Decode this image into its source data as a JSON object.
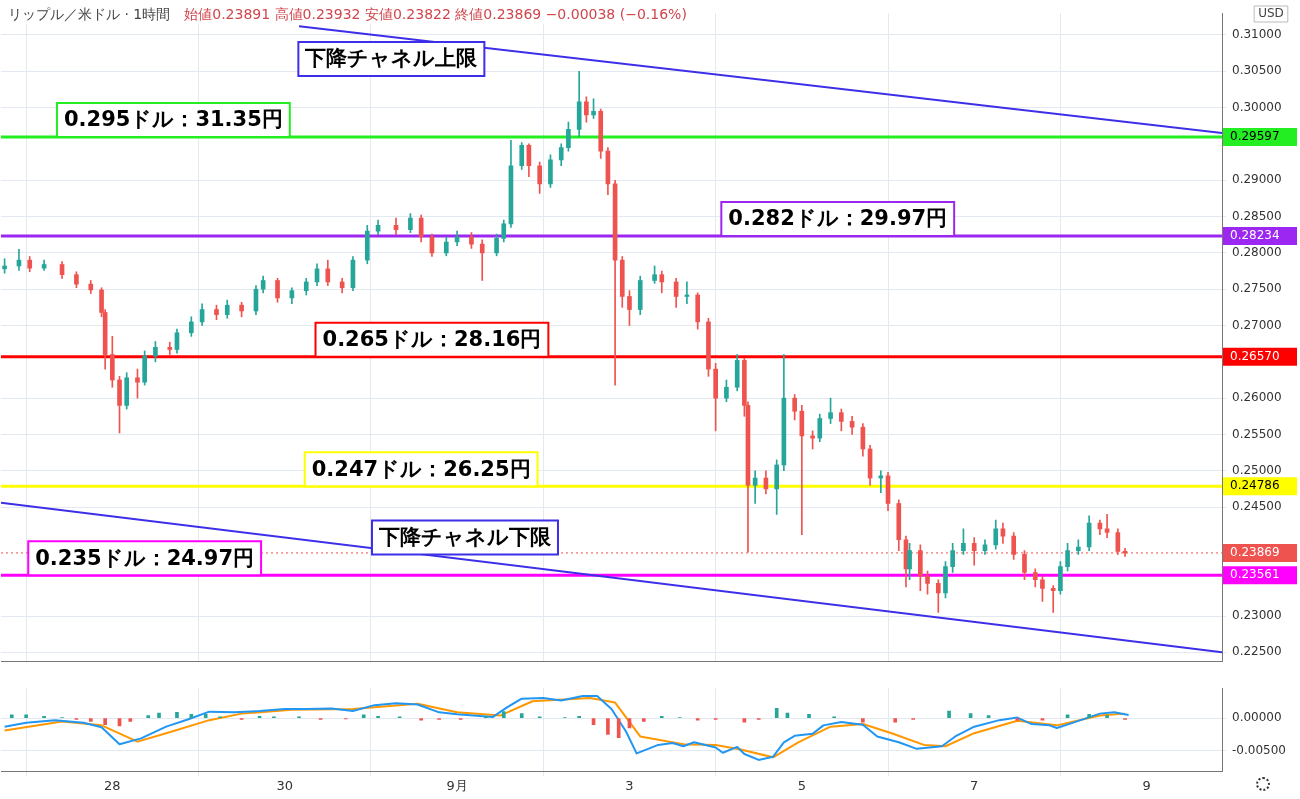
{
  "chart_data": [
    {
      "type": "candlestick",
      "title": "リップル／米ドル · 1時間",
      "subtitle": "始値0.23891 高値0.23932 安値0.23822 終値0.23869 −0.00038 (−0.16%)",
      "x": [
        "--08-26T18:00",
        "--08-26T22:00",
        "--08-27T01:00",
        "--08-27T05:00",
        "--08-27T10:00",
        "--08-27T14:00",
        "--08-27T18:00",
        "--08-27T21:00",
        "--08-27T22:00",
        "--08-28T00:00",
        "--08-28T02:00",
        "--08-28T04:00",
        "--08-28T07:00",
        "--08-28T09:00",
        "--08-28T12:00",
        "--08-28T16:00",
        "--08-28T18:00",
        "--08-28T22:00",
        "--08-29T01:00",
        "--08-29T05:00",
        "--08-29T08:00",
        "--08-29T12:00",
        "--08-29T16:00",
        "--08-29T18:00",
        "--08-29T22:00",
        "--08-30T02:00",
        "--08-30T06:00",
        "--08-30T09:00",
        "--08-30T12:00",
        "--08-30T16:00",
        "--08-30T19:00",
        "--08-30T23:00",
        "--08-31T02:00",
        "--08-31T07:00",
        "--08-31T11:00",
        "--08-31T14:00",
        "--08-31T17:00",
        "--08-31T21:00",
        "--09-01T00:00",
        "--09-01T04:00",
        "--09-01T07:00",
        "--09-01T11:00",
        "--09-01T13:00",
        "--09-01T15:00",
        "--09-01T18:00",
        "--09-01T20:00",
        "--09-01T23:00",
        "--09-02T02:00",
        "--09-02T05:00",
        "--09-02T07:00",
        "--09-02T10:00",
        "--09-02T12:00",
        "--09-02T14:00",
        "--09-02T16:00",
        "--09-02T18:00",
        "--09-02T20:00",
        "--09-02T22:00",
        "--09-03T00:00",
        "--09-03T03:00",
        "--09-03T07:00",
        "--09-03T09:00",
        "--09-03T13:00",
        "--09-03T16:00",
        "--09-03T19:00",
        "--09-03T22:00",
        "--09-04T00:00",
        "--09-04T03:00",
        "--09-04T06:00",
        "--09-04T08:00",
        "--09-04T09:00",
        "--09-04T11:00",
        "--09-04T14:00",
        "--09-04T17:00",
        "--09-04T19:00",
        "--09-04T22:00",
        "--09-05T00:00",
        "--09-05T03:00",
        "--09-05T05:00",
        "--09-05T08:00",
        "--09-05T11:00",
        "--09-05T14:00",
        "--09-05T17:00",
        "--09-05T19:00",
        "--09-05T22:00",
        "--09-06T00:00",
        "--09-06T03:00",
        "--09-06T05:00",
        "--09-06T06:00",
        "--09-06T09:00",
        "--09-06T11:00",
        "--09-06T14:00",
        "--09-06T16:00",
        "--09-06T18:00",
        "--09-06T21:00",
        "--09-07T00:00",
        "--09-07T03:00",
        "--09-07T06:00",
        "--09-07T08:00",
        "--09-07T11:00",
        "--09-07T14:00",
        "--09-07T17:00",
        "--09-07T19:00",
        "--09-07T22:00",
        "--09-08T00:00",
        "--09-08T02:00",
        "--09-08T05:00",
        "--09-08T08:00",
        "--09-08T11:00",
        "--09-08T13:00",
        "--09-08T16:00",
        "--09-08T18:00"
      ],
      "ohlc": [
        [
          0.2778,
          0.2792,
          0.2772,
          0.2782
        ],
        [
          0.2782,
          0.2805,
          0.2776,
          0.279
        ],
        [
          0.279,
          0.2795,
          0.2774,
          0.2779
        ],
        [
          0.2779,
          0.279,
          0.2776,
          0.2784
        ],
        [
          0.2784,
          0.2788,
          0.2765,
          0.277
        ],
        [
          0.277,
          0.2774,
          0.2752,
          0.2757
        ],
        [
          0.2757,
          0.2762,
          0.2744,
          0.2749
        ],
        [
          0.2749,
          0.2752,
          0.2712,
          0.2718
        ],
        [
          0.2718,
          0.2722,
          0.264,
          0.266
        ],
        [
          0.266,
          0.2685,
          0.2615,
          0.2625
        ],
        [
          0.2625,
          0.263,
          0.2552,
          0.259
        ],
        [
          0.259,
          0.2635,
          0.2585,
          0.2628
        ],
        [
          0.2628,
          0.264,
          0.26,
          0.2622
        ],
        [
          0.2622,
          0.2665,
          0.2618,
          0.2658
        ],
        [
          0.2658,
          0.2678,
          0.265,
          0.267
        ],
        [
          0.267,
          0.2677,
          0.266,
          0.2667
        ],
        [
          0.2667,
          0.2695,
          0.2662,
          0.269
        ],
        [
          0.269,
          0.2712,
          0.2685,
          0.2705
        ],
        [
          0.2705,
          0.273,
          0.27,
          0.2722
        ],
        [
          0.2722,
          0.2728,
          0.2708,
          0.2715
        ],
        [
          0.2715,
          0.2735,
          0.271,
          0.2728
        ],
        [
          0.2728,
          0.2732,
          0.2712,
          0.272
        ],
        [
          0.272,
          0.2755,
          0.2715,
          0.275
        ],
        [
          0.275,
          0.2768,
          0.2745,
          0.2762
        ],
        [
          0.2762,
          0.2765,
          0.2732,
          0.2738
        ],
        [
          0.2738,
          0.2752,
          0.273,
          0.2748
        ],
        [
          0.2748,
          0.2765,
          0.2742,
          0.276
        ],
        [
          0.276,
          0.2785,
          0.2755,
          0.2778
        ],
        [
          0.2778,
          0.279,
          0.2755,
          0.276
        ],
        [
          0.276,
          0.2765,
          0.2745,
          0.2752
        ],
        [
          0.2752,
          0.2795,
          0.2748,
          0.279
        ],
        [
          0.279,
          0.2838,
          0.2785,
          0.283
        ],
        [
          0.283,
          0.2845,
          0.2825,
          0.2838
        ],
        [
          0.2838,
          0.2848,
          0.2825,
          0.2832
        ],
        [
          0.2832,
          0.2854,
          0.2828,
          0.2848
        ],
        [
          0.2848,
          0.2852,
          0.2815,
          0.2822
        ],
        [
          0.2822,
          0.2826,
          0.2795,
          0.28
        ],
        [
          0.28,
          0.2822,
          0.2796,
          0.2815
        ],
        [
          0.2815,
          0.283,
          0.281,
          0.2822
        ],
        [
          0.2822,
          0.2828,
          0.2806,
          0.2812
        ],
        [
          0.2812,
          0.2818,
          0.2762,
          0.28
        ],
        [
          0.28,
          0.2826,
          0.2796,
          0.282
        ],
        [
          0.282,
          0.2845,
          0.2815,
          0.284
        ],
        [
          0.284,
          0.2955,
          0.2835,
          0.292
        ],
        [
          0.292,
          0.2952,
          0.2915,
          0.2948
        ],
        [
          0.2948,
          0.295,
          0.2905,
          0.292
        ],
        [
          0.292,
          0.2925,
          0.2882,
          0.2895
        ],
        [
          0.2895,
          0.2935,
          0.289,
          0.2928
        ],
        [
          0.2928,
          0.295,
          0.292,
          0.2945
        ],
        [
          0.2945,
          0.298,
          0.294,
          0.297
        ],
        [
          0.297,
          0.305,
          0.296,
          0.3008
        ],
        [
          0.3008,
          0.3015,
          0.298,
          0.299
        ],
        [
          0.299,
          0.3012,
          0.2985,
          0.2995
        ],
        [
          0.2995,
          0.2998,
          0.293,
          0.294
        ],
        [
          0.294,
          0.2945,
          0.288,
          0.2895
        ],
        [
          0.2895,
          0.29,
          0.2618,
          0.279
        ],
        [
          0.279,
          0.2795,
          0.2725,
          0.274
        ],
        [
          0.274,
          0.2748,
          0.27,
          0.2722
        ],
        [
          0.2722,
          0.2768,
          0.2715,
          0.2762
        ],
        [
          0.2762,
          0.2782,
          0.2758,
          0.277
        ],
        [
          0.277,
          0.2775,
          0.2745,
          0.276
        ],
        [
          0.276,
          0.2765,
          0.2725,
          0.274
        ],
        [
          0.274,
          0.276,
          0.273,
          0.2742
        ],
        [
          0.2742,
          0.2745,
          0.2695,
          0.2705
        ],
        [
          0.2705,
          0.271,
          0.263,
          0.264
        ],
        [
          0.264,
          0.2648,
          0.2555,
          0.26
        ],
        [
          0.26,
          0.2625,
          0.2595,
          0.2615
        ],
        [
          0.2615,
          0.266,
          0.261,
          0.2652
        ],
        [
          0.2652,
          0.2655,
          0.2575,
          0.259
        ],
        [
          0.259,
          0.2595,
          0.2388,
          0.248
        ],
        [
          0.248,
          0.25,
          0.2455,
          0.249
        ],
        [
          0.249,
          0.25,
          0.2468,
          0.2475
        ],
        [
          0.2475,
          0.2515,
          0.244,
          0.2508
        ],
        [
          0.2508,
          0.266,
          0.25,
          0.26
        ],
        [
          0.26,
          0.2605,
          0.257,
          0.2582
        ],
        [
          0.2582,
          0.259,
          0.2412,
          0.2548
        ],
        [
          0.2548,
          0.2555,
          0.253,
          0.2545
        ],
        [
          0.2545,
          0.2578,
          0.254,
          0.2572
        ],
        [
          0.2572,
          0.26,
          0.2565,
          0.258
        ],
        [
          0.258,
          0.2585,
          0.2555,
          0.2568
        ],
        [
          0.2568,
          0.2575,
          0.255,
          0.256
        ],
        [
          0.256,
          0.2565,
          0.252,
          0.253
        ],
        [
          0.253,
          0.2535,
          0.248,
          0.249
        ],
        [
          0.249,
          0.25,
          0.247,
          0.2493
        ],
        [
          0.2493,
          0.2498,
          0.2445,
          0.2455
        ],
        [
          0.2455,
          0.246,
          0.239,
          0.2405
        ],
        [
          0.2405,
          0.241,
          0.234,
          0.2365
        ],
        [
          0.2365,
          0.24,
          0.235,
          0.239
        ],
        [
          0.239,
          0.2398,
          0.2335,
          0.2355
        ],
        [
          0.2355,
          0.2362,
          0.233,
          0.2345
        ],
        [
          0.2345,
          0.235,
          0.2305,
          0.2332
        ],
        [
          0.2332,
          0.2375,
          0.2325,
          0.2368
        ],
        [
          0.2368,
          0.24,
          0.236,
          0.239
        ],
        [
          0.239,
          0.242,
          0.2385,
          0.24
        ],
        [
          0.24,
          0.2408,
          0.237,
          0.239
        ],
        [
          0.239,
          0.2405,
          0.2385,
          0.2398
        ],
        [
          0.2398,
          0.2432,
          0.2392,
          0.242
        ],
        [
          0.242,
          0.2428,
          0.24,
          0.241
        ],
        [
          0.241,
          0.2415,
          0.2378,
          0.2385
        ],
        [
          0.2385,
          0.239,
          0.235,
          0.236
        ],
        [
          0.236,
          0.2365,
          0.234,
          0.235
        ],
        [
          0.235,
          0.2355,
          0.232,
          0.2338
        ],
        [
          0.2338,
          0.2342,
          0.2305,
          0.2335
        ],
        [
          0.2335,
          0.2375,
          0.233,
          0.2368
        ],
        [
          0.2368,
          0.24,
          0.2362,
          0.239
        ],
        [
          0.239,
          0.2405,
          0.2385,
          0.2395
        ],
        [
          0.2395,
          0.2438,
          0.239,
          0.2428
        ],
        [
          0.2428,
          0.2432,
          0.2412,
          0.242
        ],
        [
          0.242,
          0.244,
          0.2408,
          0.2415
        ],
        [
          0.2415,
          0.242,
          0.2385,
          0.23891
        ],
        [
          0.23891,
          0.23932,
          0.23822,
          0.23869
        ]
      ],
      "series": [
        {
          "type": "line",
          "name": "下降チャネル上限",
          "x": [
            "--08-30T04:00",
            "--09-09T21:00"
          ],
          "values": [
            0.3112,
            0.2965
          ],
          "color": "#3d2ee8"
        },
        {
          "type": "line",
          "name": "下降チャネル下限",
          "x": [
            "--08-26T17:00",
            "--09-09T21:00"
          ],
          "values": [
            0.2456,
            0.225
          ],
          "color": "#3d2ee8"
        }
      ],
      "xlim": [
        "--08-26T17:00",
        "--09-09T21:00"
      ],
      "xticks": [
        {
          "value": "--08-28",
          "label": null
        },
        {
          "value": "--08-30",
          "label": null
        },
        {
          "value": "--09-01",
          "label": null
        },
        {
          "value": "--09-03",
          "label": null
        },
        {
          "value": "--09-05",
          "label": null
        },
        {
          "value": "--09-07",
          "label": null
        },
        {
          "value": "--09-09",
          "label": null
        }
      ],
      "ylim": [
        0.2237,
        0.313
      ],
      "yticks": [
        {
          "value": 0.225,
          "label": "0.22500"
        },
        {
          "value": 0.23,
          "label": "0.23000"
        },
        {
          "value": 0.245,
          "label": "0.24500"
        },
        {
          "value": 0.25,
          "label": "0.25000"
        },
        {
          "value": 0.255,
          "label": "0.25500"
        },
        {
          "value": 0.26,
          "label": "0.26000"
        },
        {
          "value": 0.27,
          "label": "0.27000"
        },
        {
          "value": 0.275,
          "label": "0.27500"
        },
        {
          "value": 0.28,
          "label": "0.28000"
        },
        {
          "value": 0.285,
          "label": "0.28500"
        },
        {
          "value": 0.29,
          "label": "0.29000"
        },
        {
          "value": 0.3,
          "label": "0.30000"
        },
        {
          "value": 0.305,
          "label": "0.30500"
        },
        {
          "value": 0.31,
          "label": "0.31000"
        }
      ],
      "ref_lines": [
        {
          "axis": "y",
          "value": 0.29597,
          "label": "0.29597",
          "color": "#22ee22"
        },
        {
          "axis": "y",
          "value": 0.28234,
          "label": "0.28234",
          "color": "#9c27f0"
        },
        {
          "axis": "y",
          "value": 0.2657,
          "label": "0.26570",
          "color": "#ff0000"
        },
        {
          "axis": "y",
          "value": 0.24786,
          "label": "0.24786",
          "color": "#ffff00"
        },
        {
          "axis": "y",
          "value": 0.23561,
          "label": "0.23561",
          "color": "#ff00ff"
        },
        {
          "axis": "y",
          "value": 0.23869,
          "label": "0.23869",
          "color": "#ef5350",
          "line_style": "dotted"
        }
      ],
      "annotations": [
        {
          "text": "0.295ドル：31.35円",
          "x": "--08-28T17:00",
          "y": 0.29597
        },
        {
          "text": "0.282ドル：29.97円",
          "x": "--09-05T10:00",
          "y": 0.28234
        },
        {
          "text": "0.265ドル：28.16円",
          "x": "--08-31T17:00",
          "y": 0.2657
        },
        {
          "text": "0.247ドル：26.25円",
          "x": "--08-31T14:00",
          "y": 0.24786
        },
        {
          "text": "0.235ドル：24.97円",
          "x": "--08-28T09:00",
          "y": 0.23561
        },
        "USD"
      ],
      "grid": true,
      "legend": false,
      "tick_labels": "y"
    },
    {
      "type": "line",
      "series": [
        {
          "type": "bar",
          "x": [
            "--08-26T20:00",
            "--08-27T00:00",
            "--08-27T05:00",
            "--08-27T10:00",
            "--08-27T14:00",
            "--08-27T18:00",
            "--08-27T22:00",
            "--08-28T02:00",
            "--08-28T05:00",
            "--08-28T10:00",
            "--08-28T13:00",
            "--08-28T18:00",
            "--08-28T22:00",
            "--08-29T02:00",
            "--08-29T06:00",
            "--08-29T12:00",
            "--08-29T17:00",
            "--08-29T21:00",
            "--08-30T04:00",
            "--08-30T10:00",
            "--08-30T17:00",
            "--08-30T22:00",
            "--08-31T02:00",
            "--08-31T08:00",
            "--08-31T14:00",
            "--08-31T19:00",
            "--09-01T01:00",
            "--09-01T08:00",
            "--09-01T13:00",
            "--09-01T18:00",
            "--09-01T23:00",
            "--09-02T06:00",
            "--09-02T10:00",
            "--09-02T14:00",
            "--09-02T18:00",
            "--09-02T21:00",
            "--09-03T00:00",
            "--09-03T04:00",
            "--09-03T09:00",
            "--09-03T14:00",
            "--09-03T19:00",
            "--09-04T00:00",
            "--09-04T08:00",
            "--09-04T12:00",
            "--09-04T17:00",
            "--09-04T20:00",
            "--09-05T02:00",
            "--09-05T09:00",
            "--09-05T17:00",
            "--09-06T02:00",
            "--09-06T07:00",
            "--09-06T17:00",
            "--09-06T23:00",
            "--09-07T04:00",
            "--09-07T12:00",
            "--09-07T19:00",
            "--09-08T02:00",
            "--09-08T08:00",
            "--09-08T13:00",
            "--09-08T18:00"
          ],
          "values": [
            0.0005,
            0.0005,
            0.0003,
            0.0001,
            -0.0002,
            -0.0005,
            -0.001,
            -0.0012,
            -0.0005,
            0.0004,
            0.0008,
            0.0009,
            0.0006,
            0.0006,
            0.0002,
            -0.0002,
            0.0003,
            0.0002,
            0.0002,
            -0.0002,
            -0.0001,
            0.0005,
            0.0003,
            0.0002,
            -0.0003,
            -0.0002,
            -0.0002,
            0.0002,
            0.001,
            0.0007,
            0.0002,
            0.0001,
            0.0003,
            -0.001,
            -0.0025,
            -0.003,
            -0.0015,
            -0.0005,
            0.0003,
            0.0001,
            -0.0003,
            -0.0002,
            -0.0006,
            -0.0002,
            0.0015,
            0.0008,
            0.0006,
            0.0002,
            -0.0006,
            -0.0006,
            -0.0002,
            0.0011,
            0.0007,
            0.0004,
            -0.0003,
            -0.0003,
            0.0005,
            0.0006,
            0.0004,
            -0.0002
          ],
          "colors": [
            "#26a69a",
            "#26a69a",
            "#26a69a",
            "#26a69a",
            "#ef5350",
            "#ef5350",
            "#ef5350",
            "#ef5350",
            "#ef5350",
            "#26a69a",
            "#26a69a",
            "#26a69a",
            "#26a69a",
            "#26a69a",
            "#26a69a",
            "#ef5350",
            "#26a69a",
            "#26a69a",
            "#26a69a",
            "#ef5350",
            "#ef5350",
            "#26a69a",
            "#26a69a",
            "#26a69a",
            "#ef5350",
            "#ef5350",
            "#ef5350",
            "#26a69a",
            "#26a69a",
            "#26a69a",
            "#26a69a",
            "#26a69a",
            "#26a69a",
            "#ef5350",
            "#ef5350",
            "#ef5350",
            "#ef5350",
            "#ef5350",
            "#26a69a",
            "#26a69a",
            "#ef5350",
            "#ef5350",
            "#ef5350",
            "#ef5350",
            "#26a69a",
            "#26a69a",
            "#26a69a",
            "#26a69a",
            "#ef5350",
            "#ef5350",
            "#ef5350",
            "#26a69a",
            "#26a69a",
            "#26a69a",
            "#ef5350",
            "#ef5350",
            "#26a69a",
            "#26a69a",
            "#26a69a",
            "#ef5350"
          ]
        },
        {
          "type": "line",
          "color": "#2196f3",
          "x": [
            "--08-26T18:00",
            "--08-27T00:00",
            "--08-27T08:00",
            "--08-27T16:00",
            "--08-27T21:00",
            "--08-28T02:00",
            "--08-28T08:00",
            "--08-28T15:00",
            "--08-28T21:00",
            "--08-29T03:00",
            "--08-29T10:00",
            "--08-29T17:00",
            "--08-30T00:00",
            "--08-30T06:00",
            "--08-30T13:00",
            "--08-30T19:00",
            "--08-31T01:00",
            "--08-31T07:00",
            "--08-31T13:00",
            "--08-31T19:00",
            "--09-01T00:00",
            "--09-01T10:00",
            "--09-01T14:00",
            "--09-01T18:00",
            "--09-02T00:00",
            "--09-02T05:00",
            "--09-02T11:00",
            "--09-02T15:00",
            "--09-02T19:00",
            "--09-02T23:00",
            "--09-03T02:00",
            "--09-03T08:00",
            "--09-03T12:00",
            "--09-03T15:00",
            "--09-03T18:00",
            "--09-04T00:00",
            "--09-04T02:00",
            "--09-04T06:00",
            "--09-04T08:00",
            "--09-04T12:00",
            "--09-04T16:00",
            "--09-04T19:00",
            "--09-04T22:00",
            "--09-05T03:00",
            "--09-05T06:00",
            "--09-05T11:00",
            "--09-05T17:00",
            "--09-05T21:00",
            "--09-06T03:00",
            "--09-06T08:00",
            "--09-06T15:00",
            "--09-06T19:00",
            "--09-07T00:00",
            "--09-07T07:00",
            "--09-07T12:00",
            "--09-07T16:00",
            "--09-07T21:00",
            "--09-07T23:00",
            "--09-08T04:00",
            "--09-08T11:00",
            "--09-08T15:00",
            "--09-08T19:00"
          ],
          "values": [
            -0.0013,
            -0.0007,
            -0.0003,
            -0.0007,
            -0.0014,
            -0.004,
            -0.0031,
            -0.0013,
            -0.0002,
            0.001,
            0.0009,
            0.0011,
            0.0014,
            0.0014,
            0.0015,
            0.0011,
            0.002,
            0.0023,
            0.0021,
            0.0009,
            0.0006,
            0.0002,
            0.0017,
            0.003,
            0.0031,
            0.0027,
            0.0034,
            0.0034,
            0.0014,
            -0.002,
            -0.0054,
            -0.0041,
            -0.0038,
            -0.0043,
            -0.0037,
            -0.0045,
            -0.0053,
            -0.0044,
            -0.0055,
            -0.0064,
            -0.0059,
            -0.0037,
            -0.0027,
            -0.0024,
            -0.0011,
            -0.0006,
            -0.001,
            -0.0028,
            -0.0037,
            -0.0047,
            -0.0043,
            -0.0027,
            -0.0013,
            -0.0003,
            0.0001,
            -0.0009,
            -0.0011,
            -0.0015,
            -0.0006,
            0.0007,
            0.0009,
            0.0005
          ]
        },
        {
          "type": "line",
          "color": "#ff9800",
          "x": [
            "--08-26T18:00",
            "--08-27T10:00",
            "--08-27T21:00",
            "--08-28T07:00",
            "--08-28T15:00",
            "--08-29T03:00",
            "--08-29T12:00",
            "--08-30T02:00",
            "--08-30T19:00",
            "--08-31T13:00",
            "--09-01T00:00",
            "--09-01T12:00",
            "--09-01T21:00",
            "--09-02T13:00",
            "--09-02T20:00",
            "--09-03T03:00",
            "--09-03T15:00",
            "--09-04T00:00",
            "--09-04T07:00",
            "--09-04T16:00",
            "--09-04T23:00",
            "--09-05T08:00",
            "--09-05T17:00",
            "--09-06T01:00",
            "--09-06T10:00",
            "--09-06T16:00",
            "--09-07T00:00",
            "--09-07T12:00",
            "--09-07T23:00",
            "--09-08T11:00",
            "--09-08T18:00"
          ],
          "values": [
            -0.0019,
            -0.0005,
            -0.0011,
            -0.0036,
            -0.0023,
            -0.0003,
            0.0007,
            0.0013,
            0.0014,
            0.0022,
            0.0009,
            0.0004,
            0.0026,
            0.0031,
            0.0024,
            -0.0028,
            -0.004,
            -0.0041,
            -0.0048,
            -0.006,
            -0.0037,
            -0.0013,
            -0.0009,
            -0.0023,
            -0.0041,
            -0.0043,
            -0.0023,
            -0.0004,
            -0.0011,
            0.0004,
            0.0007
          ]
        }
      ],
      "xlim": [
        "--08-26T17:00",
        "--09-09T21:00"
      ],
      "xticks": [
        {
          "value": "--08-28",
          "label": "28"
        },
        {
          "value": "--08-30",
          "label": "30"
        },
        {
          "value": "--09-01",
          "label": "9月"
        },
        {
          "value": "--09-03",
          "label": "3"
        },
        {
          "value": "--09-05",
          "label": "5"
        },
        {
          "value": "--09-07",
          "label": "7"
        },
        {
          "value": "--09-09",
          "label": "9"
        }
      ],
      "ylim": [
        -0.0081,
        0.0046
      ],
      "yticks": [
        {
          "value": -0.005,
          "label": "-0.00500"
        },
        {
          "value": 0,
          "label": "0.00000"
        }
      ],
      "grid": true,
      "legend": false
    }
  ]
}
